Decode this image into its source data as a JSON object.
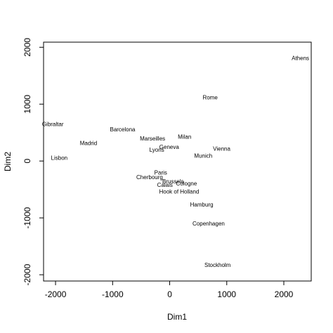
{
  "chart_data": {
    "type": "scatter",
    "xlabel": "Dim1",
    "ylabel": "Dim2",
    "xlim": [
      -2210,
      2480
    ],
    "ylim": [
      -2110,
      2090
    ],
    "xticks": [
      -2000,
      -1000,
      0,
      1000,
      2000
    ],
    "yticks": [
      -2000,
      -1000,
      0,
      1000,
      2000
    ],
    "labels": [
      "Athens",
      "Barcelona",
      "Brussels",
      "Calais",
      "Cherbourg",
      "Cologne",
      "Copenhagen",
      "Geneva",
      "Gibraltar",
      "Hamburg",
      "Hook of Holland",
      "Lisbon",
      "Lyons",
      "Madrid",
      "Marseilles",
      "Milan",
      "Munich",
      "Paris",
      "Rome",
      "Stockholm",
      "Vienna"
    ],
    "x": [
      2290,
      -825,
      59,
      -83,
      -352,
      294,
      682,
      -9,
      -2048,
      561,
      165,
      -1935,
      -226,
      -1423,
      -300,
      261,
      588,
      -157,
      709,
      839,
      911
    ],
    "y": [
      1799,
      547,
      -367,
      -430,
      -291,
      -405,
      -1109,
      240,
      642,
      -773,
      -549,
      49,
      187,
      306,
      389,
      417,
      81,
      -211,
      1109,
      -1837,
      206
    ]
  }
}
